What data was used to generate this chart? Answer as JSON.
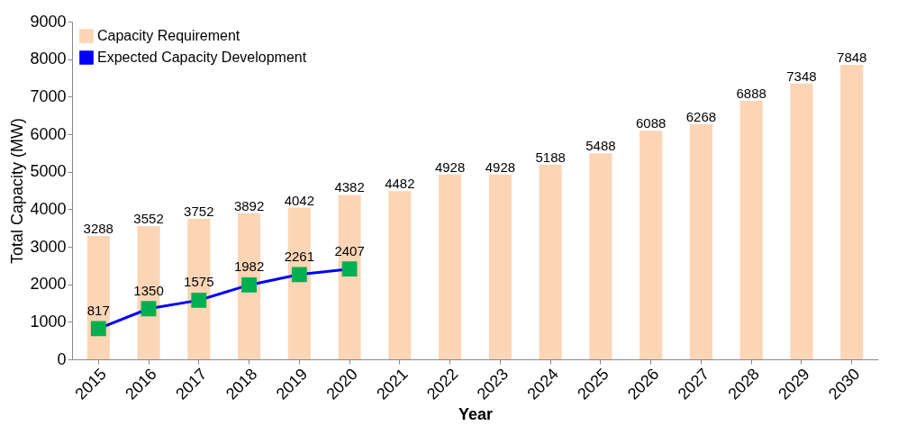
{
  "chart_data": {
    "type": "bar",
    "xlabel": "Year",
    "ylabel": "Total Capacity (MW)",
    "categories": [
      "2015",
      "2016",
      "2017",
      "2018",
      "2019",
      "2020",
      "2021",
      "2022",
      "2023",
      "2024",
      "2025",
      "2026",
      "2027",
      "2028",
      "2029",
      "2030"
    ],
    "series": [
      {
        "name": "Capacity Requirement",
        "color": "#fbd5b5",
        "values": [
          3288,
          3552,
          3752,
          3892,
          4042,
          4382,
          4482,
          4928,
          4928,
          5188,
          5488,
          6088,
          6268,
          6888,
          7348,
          7848
        ]
      },
      {
        "name": "Expected Capacity Development",
        "type": "line",
        "color": "#0000ff",
        "colors": [
          "#00b050",
          "#00b050",
          "#00b050",
          "#00b050",
          "#00b050",
          "#00b050",
          null,
          null,
          null,
          null,
          null,
          null,
          null,
          null,
          null,
          null
        ],
        "values": [
          817,
          1350,
          1575,
          1982,
          2261,
          2407,
          null,
          null,
          null,
          null,
          null,
          null,
          null,
          null,
          null,
          null
        ]
      }
    ],
    "ylim": [
      0,
      9000
    ],
    "yticks": [
      0,
      1000,
      2000,
      3000,
      4000,
      5000,
      6000,
      7000,
      8000,
      9000
    ],
    "grid": false,
    "legend": "top left",
    "marker": "square",
    "line_style": "solid",
    "data_labels": true
  }
}
